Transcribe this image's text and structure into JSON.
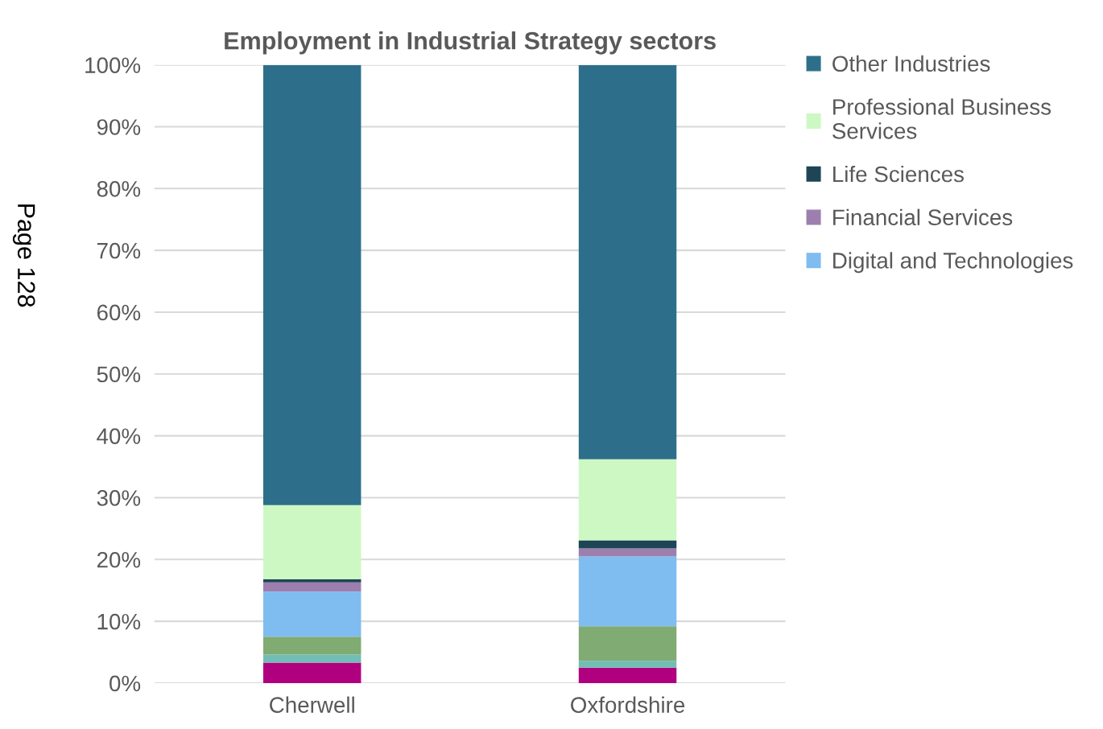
{
  "chart_data": {
    "type": "bar",
    "stacked": true,
    "title": "Employment in Industrial Strategy sectors",
    "categories": [
      "Cherwell",
      "Oxfordshire"
    ],
    "series": [
      {
        "color": "#b0007f",
        "values": [
          3.3,
          2.5
        ]
      },
      {
        "color": "#72bdb6",
        "values": [
          1.3,
          1.1
        ]
      },
      {
        "color": "#80ab73",
        "values": [
          2.9,
          5.6
        ]
      },
      {
        "name": "Digital and Technologies",
        "color": "#7fbcf0",
        "values": [
          7.3,
          11.3
        ]
      },
      {
        "name": "Financial Services",
        "color": "#9c7fae",
        "values": [
          1.5,
          1.3
        ]
      },
      {
        "name": "Life Sciences",
        "color": "#1e4555",
        "values": [
          0.5,
          1.3
        ]
      },
      {
        "name": "Professional Business Services",
        "color": "#cdf8c3",
        "values": [
          12.0,
          13.1
        ]
      },
      {
        "name": "Other Industries",
        "color": "#2d6f8a",
        "values": [
          71.2,
          63.8
        ]
      }
    ],
    "ylim": [
      0,
      100
    ],
    "yticks": [
      {
        "value": 0,
        "label": "0%"
      },
      {
        "value": 10,
        "label": "10%"
      },
      {
        "value": 20,
        "label": "20%"
      },
      {
        "value": 30,
        "label": "30%"
      },
      {
        "value": 40,
        "label": "40%"
      },
      {
        "value": 50,
        "label": "50%"
      },
      {
        "value": 60,
        "label": "60%"
      },
      {
        "value": 70,
        "label": "70%"
      },
      {
        "value": 80,
        "label": "80%"
      },
      {
        "value": 90,
        "label": "90%"
      },
      {
        "value": 100,
        "label": "100%"
      }
    ],
    "grid": "y",
    "legend": "right",
    "annotations": [
      "Page 128"
    ]
  }
}
